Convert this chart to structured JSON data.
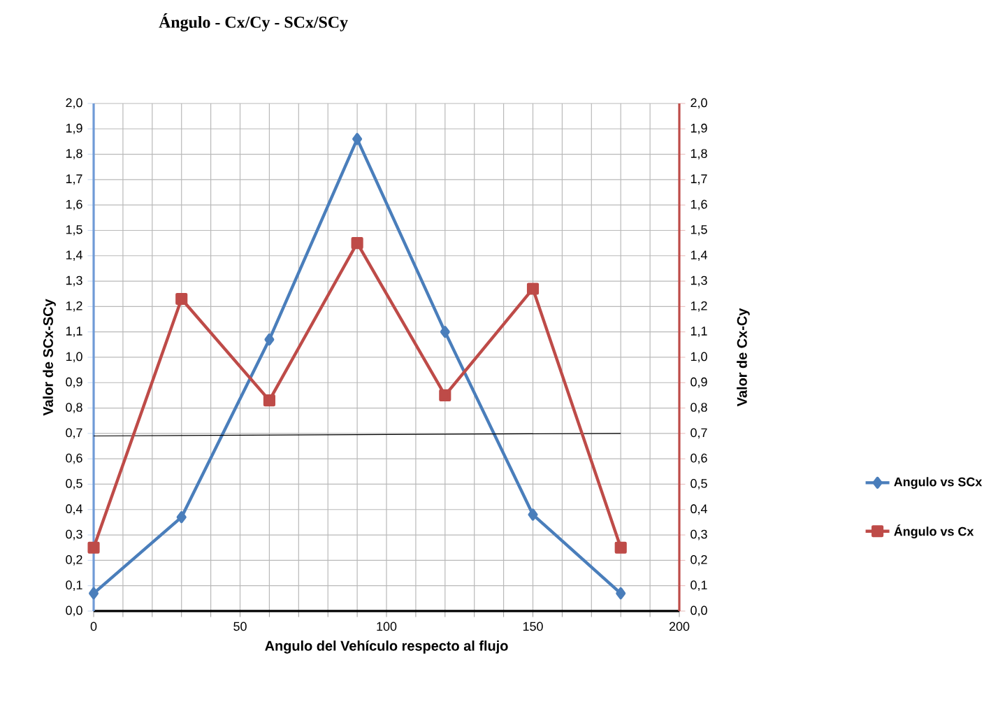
{
  "chart_data": {
    "type": "line",
    "title": "Ángulo - Cx/Cy - SCx/SCy",
    "xlabel": "Angulo del Vehículo respecto al flujo",
    "ylabel": "Valor de SCx-SCy",
    "y2label": "Valor de Cx-Cy",
    "xlim": [
      0,
      200
    ],
    "xticks": [
      0,
      {
        "value": 10,
        "label": null
      },
      {
        "value": 20,
        "label": null
      },
      {
        "value": 30,
        "label": null
      },
      {
        "value": 40,
        "label": null
      },
      50,
      {
        "value": 60,
        "label": null
      },
      {
        "value": 70,
        "label": null
      },
      {
        "value": 80,
        "label": null
      },
      {
        "value": 90,
        "label": null
      },
      100,
      {
        "value": 110,
        "label": null
      },
      {
        "value": 120,
        "label": null
      },
      {
        "value": 130,
        "label": null
      },
      {
        "value": 140,
        "label": null
      },
      150,
      {
        "value": 160,
        "label": null
      },
      {
        "value": 170,
        "label": null
      },
      {
        "value": 180,
        "label": null
      },
      {
        "value": 190,
        "label": null
      },
      200
    ],
    "ylim": [
      0,
      2
    ],
    "yticks": [
      {
        "value": 0,
        "label": "0,0"
      },
      {
        "value": 0.1,
        "label": "0,1"
      },
      {
        "value": 0.2,
        "label": "0,2"
      },
      {
        "value": 0.3,
        "label": "0,3"
      },
      {
        "value": 0.4,
        "label": "0,4"
      },
      {
        "value": 0.5,
        "label": "0,5"
      },
      {
        "value": 0.6,
        "label": "0,6"
      },
      {
        "value": 0.7,
        "label": "0,7"
      },
      {
        "value": 0.8,
        "label": "0,8"
      },
      {
        "value": 0.9,
        "label": "0,9"
      },
      {
        "value": 1.0,
        "label": "1,0"
      },
      {
        "value": 1.1,
        "label": "1,1"
      },
      {
        "value": 1.2,
        "label": "1,2"
      },
      {
        "value": 1.3,
        "label": "1,3"
      },
      {
        "value": 1.4,
        "label": "1,4"
      },
      {
        "value": 1.5,
        "label": "1,5"
      },
      {
        "value": 1.6,
        "label": "1,6"
      },
      {
        "value": 1.7,
        "label": "1,7"
      },
      {
        "value": 1.8,
        "label": "1,8"
      },
      {
        "value": 1.9,
        "label": "1,9"
      },
      {
        "value": 2.0,
        "label": "2,0"
      }
    ],
    "y2lim": [
      0,
      2
    ],
    "y2ticks": [
      {
        "value": 0,
        "label": "0,0"
      },
      {
        "value": 0.1,
        "label": "0,1"
      },
      {
        "value": 0.2,
        "label": "0,2"
      },
      {
        "value": 0.3,
        "label": "0,3"
      },
      {
        "value": 0.4,
        "label": "0,4"
      },
      {
        "value": 0.5,
        "label": "0,5"
      },
      {
        "value": 0.6,
        "label": "0,6"
      },
      {
        "value": 0.7,
        "label": "0,7"
      },
      {
        "value": 0.8,
        "label": "0,8"
      },
      {
        "value": 0.9,
        "label": "0,9"
      },
      {
        "value": 1.0,
        "label": "1,0"
      },
      {
        "value": 1.1,
        "label": "1,1"
      },
      {
        "value": 1.2,
        "label": "1,2"
      },
      {
        "value": 1.3,
        "label": "1,3"
      },
      {
        "value": 1.4,
        "label": "1,4"
      },
      {
        "value": 1.5,
        "label": "1,5"
      },
      {
        "value": 1.6,
        "label": "1,6"
      },
      {
        "value": 1.7,
        "label": "1,7"
      },
      {
        "value": 1.8,
        "label": "1,8"
      },
      {
        "value": 1.9,
        "label": "1,9"
      },
      {
        "value": 2.0,
        "label": "2,0"
      }
    ],
    "grid": true,
    "legend": "right",
    "series": [
      {
        "name": "Angulo vs SCx",
        "color": "#4a7ebb",
        "marker": "diamond",
        "x": [
          0,
          30,
          60,
          90,
          120,
          150,
          180
        ],
        "values": [
          0.07,
          0.37,
          1.07,
          1.86,
          1.1,
          0.38,
          0.07
        ]
      },
      {
        "name": "Ángulo vs Cx",
        "color": "#be4b48",
        "marker": "square",
        "axis": "y2",
        "x": [
          0,
          30,
          60,
          90,
          120,
          150,
          180
        ],
        "values": [
          0.25,
          1.23,
          0.83,
          1.45,
          0.85,
          1.27,
          0.25
        ]
      },
      {
        "type": "line",
        "color": "#000000",
        "marker": "none",
        "x": [
          0,
          180
        ],
        "values": [
          0.69,
          0.7
        ]
      }
    ]
  }
}
